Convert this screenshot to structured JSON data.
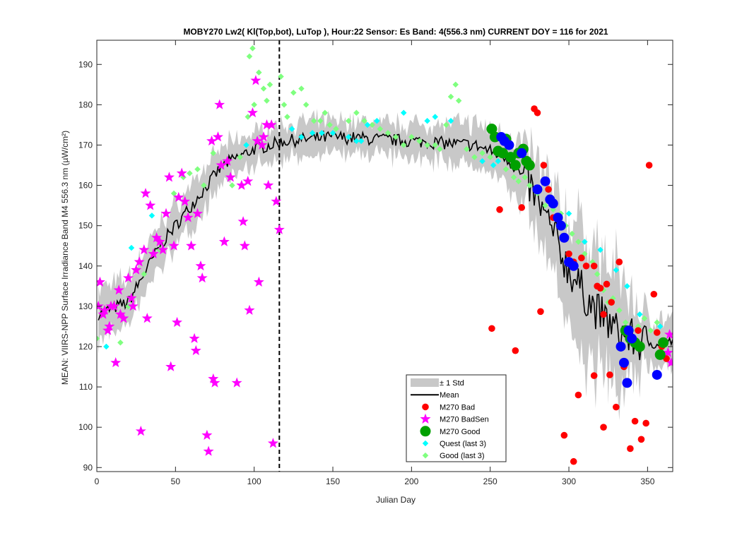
{
  "chart_data": {
    "type": "scatter",
    "title": "MOBY270   Lw2( Kl(Top,bot), LuTop ),   Hour:22 Sensor: Es Band: 4(556.3 nm)   CURRENT DOY = 116 for 2021",
    "xlabel": "Julian Day",
    "ylabel": "MEAN: VIIRS-NPP Surface Irradiance Band M4 556.3 nm (µW/cm²)",
    "xlim": [
      0,
      366
    ],
    "ylim": [
      89,
      196
    ],
    "xticks": [
      "0",
      "50",
      "100",
      "150",
      "200",
      "250",
      "300",
      "350"
    ],
    "yticks": [
      "90",
      "100",
      "110",
      "120",
      "130",
      "140",
      "150",
      "160",
      "170",
      "180",
      "190"
    ],
    "current_doy": 116,
    "legend_position": "bottom-center",
    "legend": [
      "± 1 Std",
      "Mean",
      "M270 Bad",
      "M270 BadSen",
      "M270 Good",
      "Quest (last 3)",
      "Good (last 3)"
    ],
    "colors": {
      "std_band": "#c8c8c8",
      "mean": "#000000",
      "bad": "#ff0000",
      "badsen": "#ff00ff",
      "good": "#00a000",
      "good_blue": "#0000ff",
      "quest": "#00ffff",
      "good_last3": "#7fff7f"
    },
    "mean_anchors": [
      [
        0,
        128
      ],
      [
        20,
        131
      ],
      [
        40,
        145
      ],
      [
        60,
        155
      ],
      [
        80,
        165
      ],
      [
        100,
        169
      ],
      [
        120,
        171
      ],
      [
        150,
        172
      ],
      [
        200,
        171
      ],
      [
        240,
        170
      ],
      [
        260,
        167
      ],
      [
        275,
        160
      ],
      [
        290,
        148
      ],
      [
        300,
        139
      ],
      [
        315,
        130
      ],
      [
        330,
        124
      ],
      [
        345,
        121
      ],
      [
        366,
        121
      ]
    ],
    "std_anchors": [
      [
        0,
        6
      ],
      [
        50,
        5
      ],
      [
        100,
        4
      ],
      [
        150,
        4
      ],
      [
        200,
        4
      ],
      [
        240,
        5
      ],
      [
        260,
        6
      ],
      [
        280,
        9
      ],
      [
        300,
        12
      ],
      [
        310,
        15
      ],
      [
        330,
        14
      ],
      [
        350,
        6
      ],
      [
        366,
        5
      ]
    ],
    "series": [
      {
        "name": "M270 Bad",
        "points": [
          [
            251,
            124.5
          ],
          [
            256,
            154
          ],
          [
            266,
            119
          ],
          [
            270,
            154.5
          ],
          [
            278,
            179
          ],
          [
            280,
            178
          ],
          [
            282,
            128.7
          ],
          [
            287,
            159
          ],
          [
            297,
            98
          ],
          [
            300,
            143
          ],
          [
            303,
            141
          ],
          [
            306,
            108
          ],
          [
            308,
            142
          ],
          [
            311,
            140
          ],
          [
            316,
            140
          ],
          [
            318,
            135
          ],
          [
            320,
            134.5
          ],
          [
            322,
            128
          ],
          [
            324,
            135.5
          ],
          [
            327,
            131
          ],
          [
            332,
            141
          ],
          [
            335,
            115
          ],
          [
            337,
            111
          ],
          [
            339,
            94.7
          ],
          [
            342,
            101.5
          ],
          [
            344,
            124
          ],
          [
            346,
            97
          ],
          [
            349,
            101
          ],
          [
            351,
            165
          ],
          [
            354,
            133
          ],
          [
            356,
            123.5
          ],
          [
            359,
            120
          ],
          [
            362,
            117
          ],
          [
            316,
            112.8
          ],
          [
            330,
            105
          ],
          [
            326,
            113
          ],
          [
            322,
            100
          ],
          [
            303,
            91.5
          ],
          [
            284,
            165
          ],
          [
            290,
            152
          ]
        ]
      },
      {
        "name": "M270 BadSen",
        "points": [
          [
            1,
            130
          ],
          [
            2,
            136
          ],
          [
            4,
            128
          ],
          [
            5,
            129
          ],
          [
            7,
            124
          ],
          [
            8,
            125
          ],
          [
            9,
            130
          ],
          [
            11,
            130
          ],
          [
            12,
            116
          ],
          [
            14,
            134
          ],
          [
            15,
            128
          ],
          [
            17,
            127
          ],
          [
            20,
            137
          ],
          [
            22,
            132
          ],
          [
            23,
            130
          ],
          [
            25,
            139
          ],
          [
            27,
            141
          ],
          [
            28,
            99
          ],
          [
            30,
            144
          ],
          [
            31,
            158
          ],
          [
            32,
            127
          ],
          [
            34,
            155
          ],
          [
            36,
            143
          ],
          [
            38,
            147
          ],
          [
            40,
            146
          ],
          [
            42,
            144
          ],
          [
            44,
            153
          ],
          [
            46,
            162
          ],
          [
            47,
            115
          ],
          [
            49,
            145
          ],
          [
            51,
            126
          ],
          [
            52,
            157
          ],
          [
            54,
            163
          ],
          [
            56,
            156
          ],
          [
            58,
            152
          ],
          [
            60,
            145
          ],
          [
            62,
            122
          ],
          [
            63,
            119
          ],
          [
            64,
            153
          ],
          [
            66,
            140
          ],
          [
            67,
            137
          ],
          [
            70,
            98
          ],
          [
            71,
            94
          ],
          [
            73,
            171
          ],
          [
            74,
            112
          ],
          [
            75,
            111
          ],
          [
            77,
            172
          ],
          [
            78,
            180
          ],
          [
            79,
            165
          ],
          [
            81,
            146
          ],
          [
            83,
            166
          ],
          [
            85,
            162
          ],
          [
            89,
            111
          ],
          [
            92,
            160
          ],
          [
            93,
            151
          ],
          [
            94,
            145
          ],
          [
            96,
            161
          ],
          [
            97,
            129
          ],
          [
            99,
            178
          ],
          [
            101,
            186
          ],
          [
            102,
            171
          ],
          [
            103,
            136
          ],
          [
            105,
            170
          ],
          [
            106,
            172
          ],
          [
            108,
            175
          ],
          [
            109,
            160
          ],
          [
            111,
            175
          ],
          [
            112,
            96
          ],
          [
            114,
            156
          ],
          [
            116,
            149
          ],
          [
            364,
            123
          ],
          [
            365,
            116
          ],
          [
            363,
            118.5
          ]
        ]
      },
      {
        "name": "M270 Good",
        "points": [
          [
            251,
            174
          ],
          [
            253,
            172
          ],
          [
            255,
            168.5
          ],
          [
            258,
            168
          ],
          [
            260,
            171.5
          ],
          [
            263,
            167
          ],
          [
            266,
            165
          ],
          [
            268,
            168
          ],
          [
            271,
            169
          ],
          [
            273,
            166
          ],
          [
            275,
            165
          ],
          [
            336,
            124
          ],
          [
            339,
            122
          ],
          [
            342,
            121
          ],
          [
            345,
            120
          ],
          [
            358,
            118
          ],
          [
            360,
            121
          ]
        ]
      },
      {
        "name": "M270 Good (blue)",
        "points": [
          [
            257,
            172
          ],
          [
            259,
            171
          ],
          [
            262,
            170
          ],
          [
            270,
            168
          ],
          [
            280,
            159
          ],
          [
            285,
            161
          ],
          [
            288,
            156.5
          ],
          [
            290,
            155.5
          ],
          [
            293,
            152
          ],
          [
            295,
            150
          ],
          [
            297,
            147
          ],
          [
            300,
            141
          ],
          [
            303,
            140
          ],
          [
            333,
            120
          ],
          [
            335,
            116
          ],
          [
            337,
            111
          ],
          [
            338,
            124
          ],
          [
            340,
            122
          ],
          [
            356,
            113
          ]
        ]
      },
      {
        "name": "Quest (last 3)",
        "points": [
          [
            6,
            120
          ],
          [
            22,
            144.5
          ],
          [
            35,
            152.5
          ],
          [
            95,
            170
          ],
          [
            124,
            174
          ],
          [
            130,
            172
          ],
          [
            137,
            173
          ],
          [
            143,
            173
          ],
          [
            150,
            173
          ],
          [
            160,
            172
          ],
          [
            165,
            171
          ],
          [
            168,
            171
          ],
          [
            172,
            175
          ],
          [
            178,
            176
          ],
          [
            195,
            178
          ],
          [
            210,
            176
          ],
          [
            215,
            177
          ],
          [
            225,
            176
          ],
          [
            245,
            166
          ],
          [
            252,
            165
          ],
          [
            255,
            166
          ],
          [
            300,
            153
          ],
          [
            310,
            146
          ],
          [
            320,
            144
          ],
          [
            330,
            139
          ],
          [
            337,
            135
          ],
          [
            345,
            128
          ],
          [
            358,
            125
          ]
        ]
      },
      {
        "name": "Good (last 3)",
        "points": [
          [
            0,
            122
          ],
          [
            15,
            121
          ],
          [
            20,
            130
          ],
          [
            30,
            138
          ],
          [
            40,
            144
          ],
          [
            49,
            158
          ],
          [
            55,
            162
          ],
          [
            59,
            163
          ],
          [
            64,
            164
          ],
          [
            68,
            160
          ],
          [
            74,
            168
          ],
          [
            86,
            160
          ],
          [
            91,
            167
          ],
          [
            96,
            177
          ],
          [
            97,
            192
          ],
          [
            99,
            194
          ],
          [
            100,
            180
          ],
          [
            103,
            188
          ],
          [
            106,
            184
          ],
          [
            108,
            181
          ],
          [
            110,
            185
          ],
          [
            117,
            187
          ],
          [
            119,
            180
          ],
          [
            121,
            177
          ],
          [
            125,
            183
          ],
          [
            130,
            184
          ],
          [
            133,
            180
          ],
          [
            138,
            176
          ],
          [
            142,
            176
          ],
          [
            145,
            178
          ],
          [
            148,
            175
          ],
          [
            152,
            174
          ],
          [
            160,
            176
          ],
          [
            165,
            178
          ],
          [
            170,
            176
          ],
          [
            175,
            175
          ],
          [
            180,
            174
          ],
          [
            185,
            173
          ],
          [
            190,
            172
          ],
          [
            195,
            170
          ],
          [
            200,
            172
          ],
          [
            205,
            171
          ],
          [
            210,
            170
          ],
          [
            215,
            170
          ],
          [
            218,
            169
          ],
          [
            222,
            175
          ],
          [
            225,
            182
          ],
          [
            228,
            185
          ],
          [
            230,
            181
          ],
          [
            235,
            169
          ],
          [
            240,
            167
          ],
          [
            245,
            168
          ],
          [
            250,
            167
          ],
          [
            255,
            168
          ],
          [
            260,
            164
          ],
          [
            265,
            162
          ],
          [
            268,
            161
          ],
          [
            272,
            162
          ],
          [
            275,
            160
          ],
          [
            280,
            158
          ],
          [
            285,
            155
          ],
          [
            290,
            154
          ],
          [
            295,
            153
          ],
          [
            298,
            150
          ],
          [
            302,
            148
          ],
          [
            306,
            146
          ],
          [
            310,
            143
          ],
          [
            315,
            141
          ],
          [
            318,
            138
          ],
          [
            322,
            134
          ],
          [
            325,
            131
          ],
          [
            328,
            132
          ],
          [
            332,
            129
          ],
          [
            336,
            126
          ],
          [
            340,
            124
          ],
          [
            344,
            125
          ],
          [
            348,
            127
          ],
          [
            352,
            124
          ],
          [
            356,
            126
          ],
          [
            359,
            120
          ],
          [
            362,
            118
          ]
        ]
      }
    ]
  }
}
